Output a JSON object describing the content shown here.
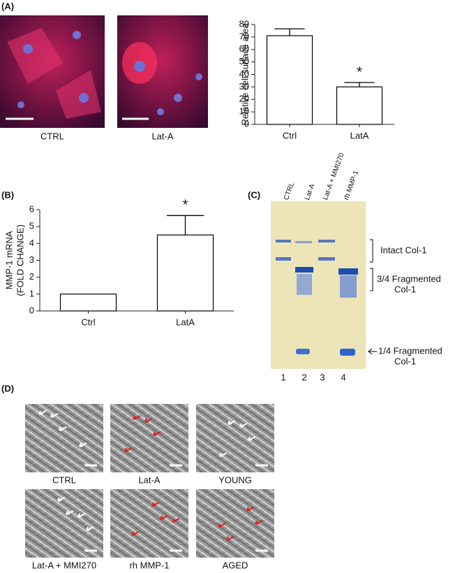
{
  "panel_labels": [
    "(A)",
    "(B)",
    "(C)",
    "(D)"
  ],
  "panel_a": {
    "captions": [
      "CTRL",
      "Lat-A"
    ]
  },
  "chart_data": [
    {
      "type": "bar",
      "y_label": [
        "Relative cell surface area"
      ],
      "categories": [
        "Ctrl",
        "LatA"
      ],
      "values": [
        71,
        30
      ],
      "errors": [
        5.5,
        3.5
      ],
      "annotation": "*",
      "color": "#ffffff",
      "ylim": [
        0,
        80
      ],
      "yticks": [
        0,
        10,
        20,
        30,
        40,
        50,
        60,
        70,
        80
      ]
    },
    {
      "type": "bar",
      "y_label": [
        "MMP-1 mRNA",
        "(FOLD CHANGE)"
      ],
      "categories": [
        "Ctrl",
        "LatA"
      ],
      "values": [
        1,
        4.5
      ],
      "errors": [
        null,
        1.15
      ],
      "annotation": "*",
      "color": "#ffffff",
      "ylim": [
        0,
        6
      ],
      "yticks": [
        0,
        1,
        2,
        3,
        4,
        5,
        6
      ]
    }
  ],
  "panel_c": {
    "lanes": [
      "CTRL",
      "Lat-A",
      "Lat-A + MMI270",
      "rh MMP-1"
    ],
    "lane_numbers": [
      "1",
      "2",
      "3",
      "4"
    ],
    "bands": [
      "Intact Col-1",
      "3/4 Fragmented",
      "Col-1",
      "1/4 Fragmented",
      "Col-1"
    ]
  },
  "panel_d": {
    "captions": [
      "CTRL",
      "Lat-A",
      "YOUNG",
      "Lat-A + MMI270",
      "rh MMP-1",
      "AGED"
    ]
  }
}
